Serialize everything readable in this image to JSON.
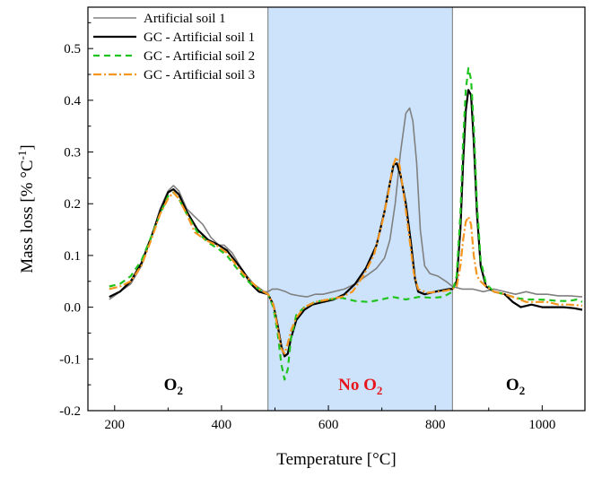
{
  "chart_data": {
    "type": "line",
    "title": "",
    "xlabel": "Temperature [°C]",
    "ylabel_parts": {
      "main": "Mass loss [% °C",
      "sup": "-1",
      "end": "]"
    },
    "xlim": [
      150,
      1080
    ],
    "ylim": [
      -0.2,
      0.58
    ],
    "xticks": [
      200,
      400,
      600,
      800,
      1000
    ],
    "yticks": [
      -0.2,
      -0.1,
      0.0,
      0.1,
      0.2,
      0.3,
      0.4,
      0.5
    ],
    "ytick_labels": [
      "-0.2",
      "-0.1",
      "0.0",
      "0.1",
      "0.2",
      "0.3",
      "0.4",
      "0.5"
    ],
    "grid": false,
    "legend_position": "top-left",
    "shaded_region": {
      "x_start": 487,
      "x_end": 832,
      "color": "#cce3fb"
    },
    "region_labels": [
      {
        "id": "o2-left",
        "main": "O",
        "sub": "2",
        "x": 310,
        "y": -0.16,
        "color": "#000000"
      },
      {
        "id": "no-o2",
        "main": "No O",
        "sub": "2",
        "x": 660,
        "y": -0.16,
        "color": "#e8141b"
      },
      {
        "id": "o2-right",
        "main": "O",
        "sub": "2",
        "x": 950,
        "y": -0.16,
        "color": "#000000"
      }
    ],
    "series": [
      {
        "name": "Artificial soil 1",
        "color": "#808080",
        "width": 1.6,
        "dash": "",
        "points": [
          [
            190,
            0.015
          ],
          [
            210,
            0.03
          ],
          [
            230,
            0.045
          ],
          [
            250,
            0.08
          ],
          [
            270,
            0.14
          ],
          [
            285,
            0.19
          ],
          [
            300,
            0.225
          ],
          [
            310,
            0.235
          ],
          [
            320,
            0.225
          ],
          [
            335,
            0.19
          ],
          [
            350,
            0.175
          ],
          [
            365,
            0.16
          ],
          [
            380,
            0.135
          ],
          [
            395,
            0.12
          ],
          [
            405,
            0.12
          ],
          [
            420,
            0.105
          ],
          [
            440,
            0.07
          ],
          [
            460,
            0.045
          ],
          [
            480,
            0.03
          ],
          [
            487,
            0.03
          ],
          [
            495,
            0.035
          ],
          [
            505,
            0.035
          ],
          [
            520,
            0.03
          ],
          [
            530,
            0.025
          ],
          [
            545,
            0.022
          ],
          [
            560,
            0.02
          ],
          [
            575,
            0.025
          ],
          [
            590,
            0.025
          ],
          [
            610,
            0.03
          ],
          [
            630,
            0.035
          ],
          [
            650,
            0.045
          ],
          [
            670,
            0.06
          ],
          [
            690,
            0.075
          ],
          [
            705,
            0.095
          ],
          [
            715,
            0.13
          ],
          [
            725,
            0.2
          ],
          [
            735,
            0.3
          ],
          [
            745,
            0.375
          ],
          [
            752,
            0.385
          ],
          [
            758,
            0.36
          ],
          [
            765,
            0.28
          ],
          [
            772,
            0.15
          ],
          [
            780,
            0.08
          ],
          [
            790,
            0.065
          ],
          [
            805,
            0.06
          ],
          [
            820,
            0.05
          ],
          [
            832,
            0.04
          ],
          [
            850,
            0.035
          ],
          [
            870,
            0.035
          ],
          [
            890,
            0.03
          ],
          [
            910,
            0.035
          ],
          [
            930,
            0.03
          ],
          [
            950,
            0.025
          ],
          [
            970,
            0.03
          ],
          [
            990,
            0.025
          ],
          [
            1010,
            0.025
          ],
          [
            1030,
            0.022
          ],
          [
            1050,
            0.022
          ],
          [
            1075,
            0.02
          ]
        ]
      },
      {
        "name": "GC - Artificial soil 1",
        "color": "#000000",
        "width": 2.2,
        "dash": "",
        "points": [
          [
            190,
            0.02
          ],
          [
            210,
            0.03
          ],
          [
            230,
            0.05
          ],
          [
            250,
            0.085
          ],
          [
            270,
            0.14
          ],
          [
            285,
            0.185
          ],
          [
            300,
            0.222
          ],
          [
            310,
            0.228
          ],
          [
            320,
            0.218
          ],
          [
            335,
            0.185
          ],
          [
            355,
            0.15
          ],
          [
            375,
            0.13
          ],
          [
            395,
            0.12
          ],
          [
            410,
            0.11
          ],
          [
            425,
            0.09
          ],
          [
            440,
            0.07
          ],
          [
            455,
            0.045
          ],
          [
            470,
            0.03
          ],
          [
            487,
            0.025
          ],
          [
            497,
            0.005
          ],
          [
            505,
            -0.035
          ],
          [
            512,
            -0.075
          ],
          [
            518,
            -0.095
          ],
          [
            524,
            -0.09
          ],
          [
            530,
            -0.06
          ],
          [
            540,
            -0.025
          ],
          [
            555,
            -0.005
          ],
          [
            570,
            0.005
          ],
          [
            590,
            0.01
          ],
          [
            610,
            0.015
          ],
          [
            630,
            0.025
          ],
          [
            650,
            0.045
          ],
          [
            670,
            0.075
          ],
          [
            690,
            0.12
          ],
          [
            705,
            0.185
          ],
          [
            715,
            0.24
          ],
          [
            722,
            0.275
          ],
          [
            728,
            0.278
          ],
          [
            735,
            0.255
          ],
          [
            745,
            0.2
          ],
          [
            755,
            0.12
          ],
          [
            762,
            0.055
          ],
          [
            768,
            0.03
          ],
          [
            780,
            0.025
          ],
          [
            800,
            0.03
          ],
          [
            815,
            0.033
          ],
          [
            825,
            0.035
          ],
          [
            832,
            0.035
          ],
          [
            840,
            0.05
          ],
          [
            847,
            0.15
          ],
          [
            852,
            0.28
          ],
          [
            857,
            0.38
          ],
          [
            862,
            0.42
          ],
          [
            867,
            0.41
          ],
          [
            872,
            0.32
          ],
          [
            878,
            0.18
          ],
          [
            885,
            0.08
          ],
          [
            895,
            0.04
          ],
          [
            910,
            0.03
          ],
          [
            930,
            0.025
          ],
          [
            945,
            0.01
          ],
          [
            960,
            0.0
          ],
          [
            980,
            0.005
          ],
          [
            1000,
            0.0
          ],
          [
            1020,
            0.0
          ],
          [
            1040,
            0.0
          ],
          [
            1060,
            -0.002
          ],
          [
            1075,
            -0.005
          ]
        ]
      },
      {
        "name": "GC - Artificial soil 2",
        "color": "#1fc41f",
        "width": 2.2,
        "dash": "7,5",
        "points": [
          [
            190,
            0.04
          ],
          [
            210,
            0.045
          ],
          [
            230,
            0.06
          ],
          [
            250,
            0.09
          ],
          [
            270,
            0.14
          ],
          [
            285,
            0.18
          ],
          [
            300,
            0.215
          ],
          [
            310,
            0.222
          ],
          [
            320,
            0.21
          ],
          [
            335,
            0.18
          ],
          [
            355,
            0.145
          ],
          [
            375,
            0.125
          ],
          [
            395,
            0.112
          ],
          [
            410,
            0.1
          ],
          [
            425,
            0.08
          ],
          [
            440,
            0.06
          ],
          [
            455,
            0.045
          ],
          [
            470,
            0.035
          ],
          [
            487,
            0.025
          ],
          [
            497,
            0.0
          ],
          [
            505,
            -0.05
          ],
          [
            512,
            -0.11
          ],
          [
            518,
            -0.14
          ],
          [
            524,
            -0.12
          ],
          [
            530,
            -0.06
          ],
          [
            540,
            -0.015
          ],
          [
            555,
            0.0
          ],
          [
            575,
            0.01
          ],
          [
            600,
            0.015
          ],
          [
            625,
            0.018
          ],
          [
            650,
            0.012
          ],
          [
            675,
            0.01
          ],
          [
            700,
            0.015
          ],
          [
            720,
            0.02
          ],
          [
            745,
            0.015
          ],
          [
            770,
            0.02
          ],
          [
            795,
            0.018
          ],
          [
            815,
            0.02
          ],
          [
            832,
            0.03
          ],
          [
            840,
            0.06
          ],
          [
            847,
            0.18
          ],
          [
            852,
            0.32
          ],
          [
            857,
            0.42
          ],
          [
            862,
            0.462
          ],
          [
            867,
            0.44
          ],
          [
            872,
            0.35
          ],
          [
            878,
            0.2
          ],
          [
            885,
            0.09
          ],
          [
            895,
            0.045
          ],
          [
            910,
            0.03
          ],
          [
            930,
            0.025
          ],
          [
            950,
            0.018
          ],
          [
            970,
            0.015
          ],
          [
            990,
            0.015
          ],
          [
            1010,
            0.014
          ],
          [
            1030,
            0.012
          ],
          [
            1050,
            0.012
          ],
          [
            1065,
            0.015
          ],
          [
            1075,
            0.01
          ]
        ]
      },
      {
        "name": "GC - Artificial soil 3",
        "color": "#f4951e",
        "width": 2.2,
        "dash": "9,3,2,3",
        "points": [
          [
            190,
            0.035
          ],
          [
            210,
            0.04
          ],
          [
            230,
            0.05
          ],
          [
            250,
            0.08
          ],
          [
            270,
            0.135
          ],
          [
            285,
            0.18
          ],
          [
            300,
            0.21
          ],
          [
            310,
            0.222
          ],
          [
            320,
            0.21
          ],
          [
            335,
            0.18
          ],
          [
            350,
            0.145
          ],
          [
            370,
            0.13
          ],
          [
            390,
            0.12
          ],
          [
            410,
            0.105
          ],
          [
            425,
            0.085
          ],
          [
            440,
            0.065
          ],
          [
            455,
            0.05
          ],
          [
            470,
            0.035
          ],
          [
            487,
            0.025
          ],
          [
            497,
            0.005
          ],
          [
            505,
            -0.04
          ],
          [
            512,
            -0.08
          ],
          [
            518,
            -0.09
          ],
          [
            524,
            -0.07
          ],
          [
            530,
            -0.045
          ],
          [
            540,
            -0.02
          ],
          [
            555,
            0.0
          ],
          [
            575,
            0.01
          ],
          [
            600,
            0.015
          ],
          [
            625,
            0.02
          ],
          [
            645,
            0.03
          ],
          [
            665,
            0.06
          ],
          [
            685,
            0.1
          ],
          [
            700,
            0.16
          ],
          [
            712,
            0.22
          ],
          [
            720,
            0.27
          ],
          [
            727,
            0.29
          ],
          [
            733,
            0.275
          ],
          [
            742,
            0.21
          ],
          [
            752,
            0.13
          ],
          [
            760,
            0.065
          ],
          [
            768,
            0.035
          ],
          [
            785,
            0.028
          ],
          [
            805,
            0.03
          ],
          [
            820,
            0.032
          ],
          [
            832,
            0.035
          ],
          [
            840,
            0.04
          ],
          [
            847,
            0.08
          ],
          [
            852,
            0.13
          ],
          [
            857,
            0.165
          ],
          [
            862,
            0.175
          ],
          [
            867,
            0.16
          ],
          [
            872,
            0.1
          ],
          [
            878,
            0.06
          ],
          [
            885,
            0.05
          ],
          [
            895,
            0.04
          ],
          [
            910,
            0.03
          ],
          [
            930,
            0.025
          ],
          [
            950,
            0.018
          ],
          [
            970,
            0.01
          ],
          [
            990,
            0.01
          ],
          [
            1010,
            0.01
          ],
          [
            1030,
            0.005
          ],
          [
            1050,
            0.005
          ],
          [
            1075,
            0.003
          ]
        ]
      }
    ]
  }
}
